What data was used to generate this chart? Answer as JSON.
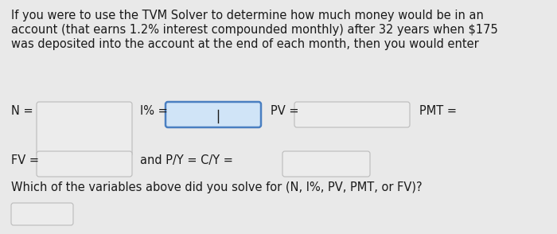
{
  "background_color": "#e9e9e9",
  "text_color": "#1a1a1a",
  "line1": "If you were to use the TVM Solver to determine how much money would be in an",
  "line2": "account (that earns 1.2% interest compounded monthly) after 32 years when $175",
  "line3": "was deposited into the account at the end of each month, then you would enter",
  "bottom_question": "Which of the variables above did you solve for (N, I%, PV, PMT, or FV)?",
  "box_fill_normal": "#ececec",
  "box_fill_highlighted": "#d0e4f7",
  "box_border_normal": "#bbbbbb",
  "box_border_highlighted": "#4a7fc1",
  "font_size": 10.5,
  "fig_width": 7.0,
  "fig_height": 2.94
}
